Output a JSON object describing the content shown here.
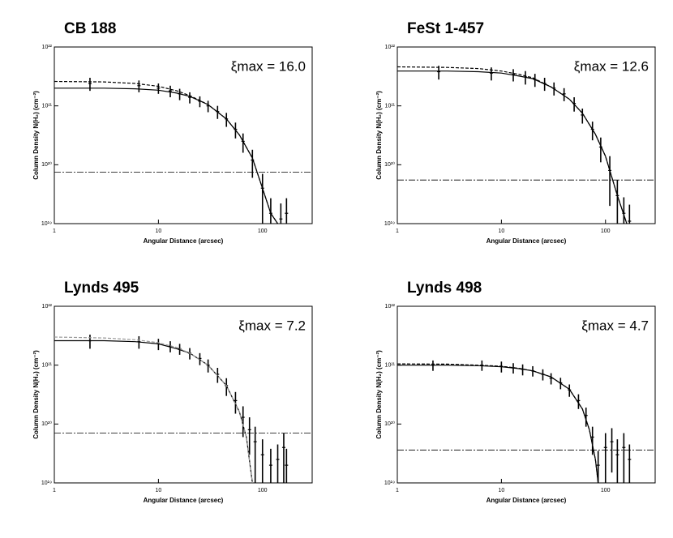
{
  "chart_data": [
    {
      "type": "line",
      "title": "CB 188",
      "annotation": "ξmax = 16.0",
      "xlabel": "Angular Distance (arcsec)",
      "ylabel": "Column Density N(H₂) (cm⁻²)",
      "xscale": "log",
      "yscale": "log",
      "xlim": [
        1,
        300
      ],
      "ylim": [
        1e+19,
        1e+22
      ],
      "xticks": [
        1,
        10,
        100
      ],
      "yticks": [
        {
          "value": 1e+19,
          "label": "10¹⁹"
        },
        {
          "value": 1e+20,
          "label": "10²⁰"
        },
        {
          "value": 1e+21,
          "label": "10²¹"
        },
        {
          "value": 1e+22,
          "label": "10²²"
        }
      ],
      "background": 7.5e+19,
      "series": [
        {
          "style": "points",
          "color": "#000",
          "x": [
            2.2,
            6.5,
            10,
            13,
            16,
            20,
            25,
            30,
            37,
            45,
            55,
            65,
            80,
            100,
            120,
            150,
            170
          ],
          "values": [
            2.4e+21,
            2.2e+21,
            2e+21,
            1.8e+21,
            1.6e+21,
            1.4e+21,
            1.2e+21,
            1e+21,
            8e+20,
            6e+20,
            4e+20,
            2.5e+20,
            1.2e+20,
            4e+19,
            1.5e+19,
            1.2e+19,
            1.5e+19
          ],
          "errors": [
            6e+20,
            5e+20,
            4e+20,
            4e+20,
            3.5e+20,
            3e+20,
            2.5e+20,
            2.2e+20,
            2e+20,
            1.6e+20,
            1.2e+20,
            9e+19,
            6e+19,
            3e+19,
            1.2e+19,
            1e+19,
            1.2e+19
          ]
        },
        {
          "style": "solid",
          "color": "#000",
          "x": [
            1,
            3,
            6,
            10,
            15,
            20,
            30,
            45,
            60,
            80,
            100,
            120,
            140
          ],
          "values": [
            2e+21,
            2e+21,
            1.95e+21,
            1.85e+21,
            1.65e+21,
            1.45e+21,
            1.05e+21,
            6e+20,
            3.2e+20,
            1.3e+20,
            4e+19,
            1.5e+19,
            1e+19
          ]
        },
        {
          "style": "dashed",
          "color": "#000",
          "x": [
            1,
            3,
            6,
            10,
            15,
            20,
            30,
            45,
            60,
            80,
            100,
            120,
            140
          ],
          "values": [
            2.6e+21,
            2.55e+21,
            2.4e+21,
            2.15e+21,
            1.8e+21,
            1.5e+21,
            1.05e+21,
            6e+20,
            3.2e+20,
            1.3e+20,
            4e+19,
            1.5e+19,
            1e+19
          ]
        }
      ]
    },
    {
      "type": "line",
      "title": "FeSt 1-457",
      "annotation": "ξmax = 12.6",
      "xlabel": "Angular Distance (arcsec)",
      "ylabel": "Column Density N(H₂) (cm⁻²)",
      "xscale": "log",
      "yscale": "log",
      "xlim": [
        1,
        300
      ],
      "ylim": [
        1e+19,
        1e+22
      ],
      "xticks": [
        1,
        10,
        100
      ],
      "yticks": [
        {
          "value": 1e+19,
          "label": "10¹⁹"
        },
        {
          "value": 1e+20,
          "label": "10²⁰"
        },
        {
          "value": 1e+21,
          "label": "10²¹"
        },
        {
          "value": 1e+22,
          "label": "10²²"
        }
      ],
      "background": 5.5e+19,
      "series": [
        {
          "style": "points",
          "color": "#000",
          "x": [
            2.5,
            8,
            13,
            17,
            21,
            26,
            32,
            40,
            50,
            60,
            75,
            90,
            110,
            130,
            150,
            170
          ],
          "values": [
            3.8e+21,
            3.6e+21,
            3.4e+21,
            3.1e+21,
            2.8e+21,
            2.4e+21,
            2e+21,
            1.6e+21,
            1.1e+21,
            7e+20,
            4e+20,
            2e+20,
            8e+19,
            3e+19,
            1.5e+19,
            1.1e+19
          ],
          "errors": [
            1e+21,
            9e+20,
            8e+20,
            8e+20,
            7e+20,
            6e+20,
            5e+20,
            4e+20,
            3e+20,
            2e+20,
            1.4e+20,
            9e+19,
            6e+19,
            2.5e+19,
            1.3e+19,
            1e+19
          ]
        },
        {
          "style": "solid",
          "color": "#000",
          "x": [
            1,
            3,
            6,
            10,
            15,
            20,
            30,
            45,
            60,
            80,
            100,
            130,
            160
          ],
          "values": [
            3.9e+21,
            3.9e+21,
            3.8e+21,
            3.6e+21,
            3.2e+21,
            2.9e+21,
            2.1e+21,
            1.3e+21,
            7.5e+20,
            3.3e+20,
            1.4e+20,
            3e+19,
            1e+19
          ]
        },
        {
          "style": "dashed",
          "color": "#000",
          "x": [
            1,
            3,
            6,
            10,
            15,
            20,
            30,
            45,
            60,
            80,
            100,
            130,
            160
          ],
          "values": [
            4.6e+21,
            4.5e+21,
            4.3e+21,
            3.9e+21,
            3.4e+21,
            3e+21,
            2.1e+21,
            1.3e+21,
            7.5e+20,
            3.3e+20,
            1.4e+20,
            3e+19,
            1e+19
          ]
        }
      ]
    },
    {
      "type": "line",
      "title": "Lynds 495",
      "annotation": "ξmax = 7.2",
      "xlabel": "Angular Distance (arcsec)",
      "ylabel": "Column Density N(H₂) (cm⁻²)",
      "xscale": "log",
      "yscale": "log",
      "xlim": [
        1,
        300
      ],
      "ylim": [
        1e+19,
        1e+22
      ],
      "xticks": [
        1,
        10,
        100
      ],
      "yticks": [
        {
          "value": 1e+19,
          "label": "10¹⁹"
        },
        {
          "value": 1e+20,
          "label": "10²⁰"
        },
        {
          "value": 1e+21,
          "label": "10²¹"
        },
        {
          "value": 1e+22,
          "label": "10²²"
        }
      ],
      "background": 7e+19,
      "series": [
        {
          "style": "points",
          "color": "#000",
          "x": [
            2.2,
            6.5,
            10,
            13,
            16,
            20,
            25,
            30,
            37,
            45,
            55,
            65,
            75,
            85,
            100,
            120,
            140,
            160,
            170
          ],
          "values": [
            2.6e+21,
            2.5e+21,
            2.3e+21,
            2.1e+21,
            1.9e+21,
            1.6e+21,
            1.3e+21,
            1e+21,
            7e+20,
            4.5e+20,
            2.5e+20,
            1.3e+20,
            8e+19,
            5e+19,
            3e+19,
            2e+19,
            2.5e+19,
            4e+19,
            2e+19
          ],
          "errors": [
            7e+20,
            6e+20,
            5e+20,
            4.5e+20,
            4e+20,
            3.5e+20,
            3e+20,
            2.5e+20,
            2e+20,
            1.5e+20,
            1e+20,
            7e+19,
            5e+19,
            4e+19,
            2.5e+19,
            1.8e+19,
            2e+19,
            3e+19,
            1.8e+19
          ]
        },
        {
          "style": "solid",
          "color": "#000",
          "x": [
            1,
            3,
            6,
            10,
            15,
            20,
            30,
            45,
            60,
            70,
            80
          ],
          "values": [
            2.6e+21,
            2.6e+21,
            2.5e+21,
            2.3e+21,
            1.9e+21,
            1.6e+21,
            1e+21,
            4.5e+20,
            1.6e+20,
            6e+19,
            1e+19
          ]
        },
        {
          "style": "dashed",
          "color": "#999",
          "x": [
            1,
            3,
            6,
            10,
            15,
            20,
            30,
            45,
            60,
            70,
            80
          ],
          "values": [
            3e+21,
            2.9e+21,
            2.7e+21,
            2.4e+21,
            2e+21,
            1.6e+21,
            1e+21,
            4.5e+20,
            1.6e+20,
            6e+19,
            1e+19
          ]
        }
      ]
    },
    {
      "type": "line",
      "title": "Lynds 498",
      "annotation": "ξmax = 4.7",
      "xlabel": "Angular Distance (arcsec)",
      "ylabel": "Column Density N(H₂) (cm⁻²)",
      "xscale": "log",
      "yscale": "log",
      "xlim": [
        1,
        300
      ],
      "ylim": [
        1e+19,
        1e+22
      ],
      "xticks": [
        1,
        10,
        100
      ],
      "yticks": [
        {
          "value": 1e+19,
          "label": "10¹⁹"
        },
        {
          "value": 1e+20,
          "label": "10²⁰"
        },
        {
          "value": 1e+21,
          "label": "10²¹"
        },
        {
          "value": 1e+22,
          "label": "10²²"
        }
      ],
      "background": 3.6e+19,
      "series": [
        {
          "style": "points",
          "color": "#000",
          "x": [
            2.2,
            6.5,
            10,
            13,
            16,
            20,
            25,
            30,
            37,
            45,
            55,
            65,
            75,
            85,
            100,
            115,
            130,
            150,
            170
          ],
          "values": [
            1e+21,
            1e+21,
            9.5e+20,
            9e+20,
            8.5e+20,
            8e+20,
            7e+20,
            6e+20,
            5e+20,
            3.8e+20,
            2.5e+20,
            1.4e+20,
            6e+19,
            2e+19,
            4e+19,
            5e+19,
            3e+19,
            4e+19,
            2.5e+19
          ],
          "errors": [
            2e+20,
            2e+20,
            2e+20,
            1.8e+20,
            1.8e+20,
            1.6e+20,
            1.5e+20,
            1.3e+20,
            1.1e+20,
            9e+19,
            7e+19,
            5e+19,
            3e+19,
            1.5e+19,
            3e+19,
            3.5e+19,
            2.5e+19,
            3e+19,
            2e+19
          ]
        },
        {
          "style": "solid",
          "color": "#000",
          "x": [
            1,
            3,
            6,
            10,
            15,
            20,
            30,
            45,
            60,
            70,
            80,
            85
          ],
          "values": [
            1e+21,
            1e+21,
            9.8e+20,
            9.4e+20,
            8.7e+20,
            8e+20,
            6.3e+20,
            3.9e+20,
            1.8e+20,
            8e+19,
            2.5e+19,
            1e+19
          ]
        },
        {
          "style": "dashed",
          "color": "#000",
          "x": [
            1,
            3,
            6,
            10,
            15,
            20,
            30,
            45,
            60,
            70,
            80,
            85
          ],
          "values": [
            1.05e+21,
            1.04e+21,
            1e+21,
            9.6e+20,
            8.8e+20,
            8e+20,
            6.3e+20,
            3.9e+20,
            1.8e+20,
            8e+19,
            2.5e+19,
            1e+19
          ]
        }
      ]
    }
  ]
}
